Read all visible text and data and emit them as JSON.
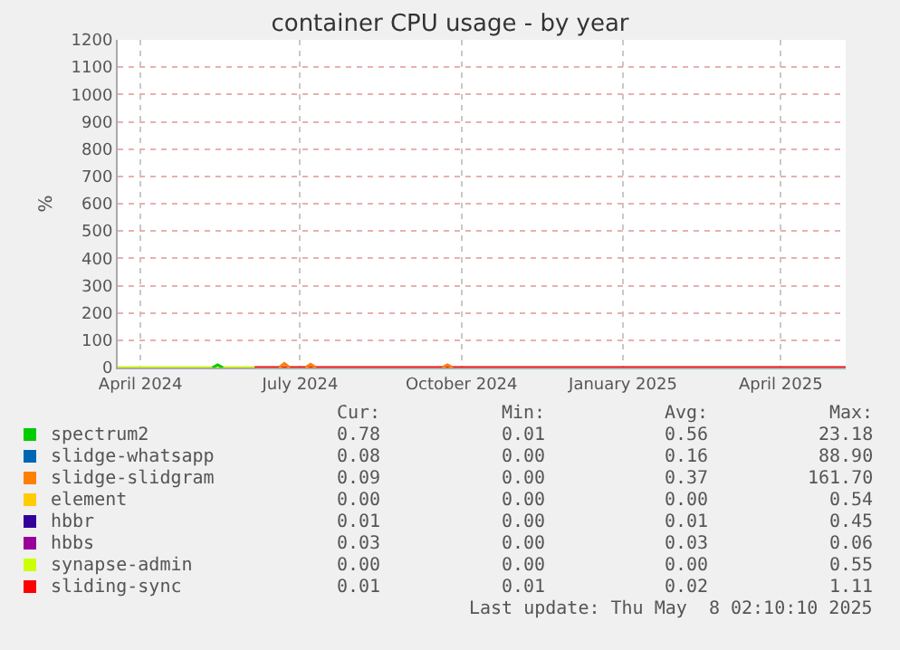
{
  "chart_data": {
    "type": "line",
    "title": "container CPU usage - by year",
    "ylabel": "%",
    "series": [
      {
        "name": "spectrum2",
        "color": "#00cc00",
        "x": [
          "2024-05-12",
          "2024-05-15",
          "2024-05-18"
        ],
        "values": [
          0,
          10,
          0
        ]
      },
      {
        "name": "slidge-whatsapp",
        "color": "#0066b3"
      },
      {
        "name": "slidge-slidgram",
        "color": "#ff8000",
        "x": [
          "2024-06-19",
          "2024-06-22",
          "2024-06-25",
          "2024-06-28",
          "2024-07-04",
          "2024-07-07",
          "2024-07-10",
          "2024-07-20",
          "2024-09-20",
          "2024-09-23",
          "2024-09-26"
        ],
        "values": [
          0,
          15,
          0,
          null,
          0,
          12,
          0,
          null,
          0,
          10,
          0
        ]
      },
      {
        "name": "element",
        "color": "#ffcc00"
      },
      {
        "name": "hbbr",
        "color": "#330099"
      },
      {
        "name": "hbbs",
        "color": "#990099"
      },
      {
        "name": "synapse-admin",
        "color": "#ccff00",
        "x": [
          "2024-03-19",
          "2024-06-05"
        ],
        "values": [
          0,
          0
        ]
      },
      {
        "name": "sliding-sync",
        "color": "#ff0000",
        "x": [
          "2024-06-05",
          "2025-05-08"
        ],
        "values": [
          0,
          0
        ]
      }
    ],
    "xlim": [
      "2024-03-19",
      "2025-05-08"
    ],
    "xticks": [
      {
        "value": "2024-04-01",
        "label": "April 2024"
      },
      {
        "value": "2024-07-01",
        "label": "July 2024"
      },
      {
        "value": "2024-10-01",
        "label": "October 2024"
      },
      {
        "value": "2025-01-01",
        "label": "January 2025"
      },
      {
        "value": "2025-04-01",
        "label": "April 2025"
      }
    ],
    "ylim": [
      0,
      1200
    ],
    "yticks": [
      0,
      100,
      200,
      300,
      400,
      500,
      600,
      700,
      800,
      900,
      1000,
      1100,
      1200
    ],
    "grid": true,
    "legend": "bottom",
    "annotations": [
      "Cur:",
      "Min:",
      "Avg:",
      "Max:",
      "0.78",
      "0.01",
      "0.56",
      "23.18",
      "0.08",
      "0.00",
      "0.16",
      "88.90",
      "0.09",
      "0.00",
      "0.37",
      "161.70",
      "0.00",
      "0.00",
      "0.00",
      "0.54",
      "0.01",
      "0.00",
      "0.01",
      "0.45",
      "0.03",
      "0.00",
      "0.03",
      "0.06",
      "0.00",
      "0.00",
      "0.00",
      "0.55",
      "0.01",
      "0.01",
      "0.02",
      "1.11",
      "Last update: Thu May  8 02:10:10 2025"
    ]
  }
}
